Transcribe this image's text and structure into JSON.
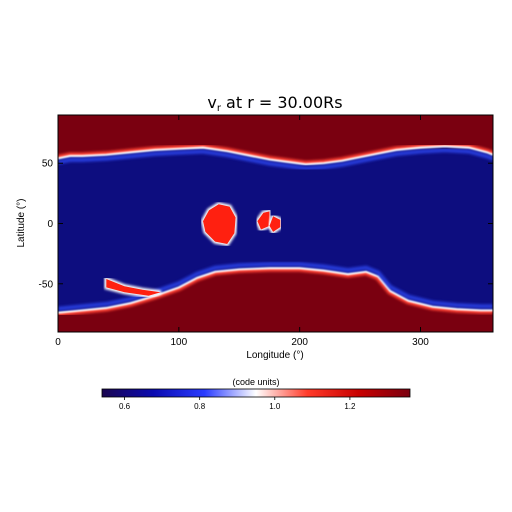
{
  "chart_data": {
    "type": "heatmap",
    "title": {
      "symbol": "v",
      "subscript": "r",
      "rest": " at r = 30.00Rs"
    },
    "xlabel": "Longitude (°)",
    "ylabel": "Latitude (°)",
    "xlim": [
      0,
      360
    ],
    "ylim": [
      -90,
      90
    ],
    "x_ticks": [
      0,
      100,
      200,
      300
    ],
    "y_ticks": [
      -50,
      0,
      50
    ],
    "colorbar": {
      "label": "(code units)",
      "range": [
        0.54,
        1.36
      ],
      "ticks": [
        0.6,
        0.8,
        1.0,
        1.2
      ],
      "tick_labels": [
        "0.6",
        "0.8",
        "1.0",
        "1.2"
      ],
      "colors": [
        "#1a0550",
        "#0a0ab0",
        "#2a3cff",
        "#ffffff",
        "#ff3b2a",
        "#c80000",
        "#7a0010"
      ]
    },
    "background_value": 1.36,
    "low_speed_value": 0.56,
    "north_boundary_lat": [
      [
        0,
        54
      ],
      [
        10,
        56
      ],
      [
        20,
        56
      ],
      [
        40,
        57
      ],
      [
        60,
        59
      ],
      [
        80,
        61
      ],
      [
        100,
        62
      ],
      [
        120,
        63
      ],
      [
        140,
        60
      ],
      [
        160,
        56
      ],
      [
        175,
        53
      ],
      [
        190,
        51
      ],
      [
        205,
        49
      ],
      [
        220,
        50
      ],
      [
        235,
        52
      ],
      [
        250,
        55
      ],
      [
        265,
        58
      ],
      [
        280,
        61
      ],
      [
        300,
        63
      ],
      [
        320,
        64
      ],
      [
        340,
        63
      ],
      [
        355,
        59
      ],
      [
        360,
        57
      ]
    ],
    "south_boundary_lat": [
      [
        0,
        -74
      ],
      [
        20,
        -72
      ],
      [
        40,
        -70
      ],
      [
        60,
        -66
      ],
      [
        80,
        -60
      ],
      [
        100,
        -53
      ],
      [
        115,
        -45
      ],
      [
        130,
        -40
      ],
      [
        150,
        -38
      ],
      [
        175,
        -37
      ],
      [
        200,
        -37
      ],
      [
        220,
        -39
      ],
      [
        240,
        -42
      ],
      [
        255,
        -40
      ],
      [
        265,
        -44
      ],
      [
        275,
        -56
      ],
      [
        290,
        -64
      ],
      [
        310,
        -69
      ],
      [
        330,
        -71
      ],
      [
        350,
        -72
      ],
      [
        360,
        -72
      ]
    ],
    "islands": [
      {
        "points": [
          [
            120,
            2
          ],
          [
            125,
            11
          ],
          [
            133,
            16
          ],
          [
            142,
            14
          ],
          [
            147,
            5
          ],
          [
            146,
            -8
          ],
          [
            140,
            -17
          ],
          [
            130,
            -15
          ],
          [
            122,
            -7
          ]
        ]
      },
      {
        "points": [
          [
            170,
            9
          ],
          [
            175,
            10
          ],
          [
            175,
            -2
          ],
          [
            168,
            -5
          ],
          [
            165,
            2
          ]
        ]
      },
      {
        "points": [
          [
            178,
            6
          ],
          [
            184,
            3
          ],
          [
            184,
            -3
          ],
          [
            178,
            -7
          ],
          [
            175,
            -2
          ]
        ]
      },
      {
        "points": [
          [
            40,
            -46
          ],
          [
            55,
            -52
          ],
          [
            70,
            -55
          ],
          [
            85,
            -57
          ],
          [
            75,
            -60
          ],
          [
            55,
            -57
          ],
          [
            40,
            -53
          ]
        ]
      }
    ]
  }
}
